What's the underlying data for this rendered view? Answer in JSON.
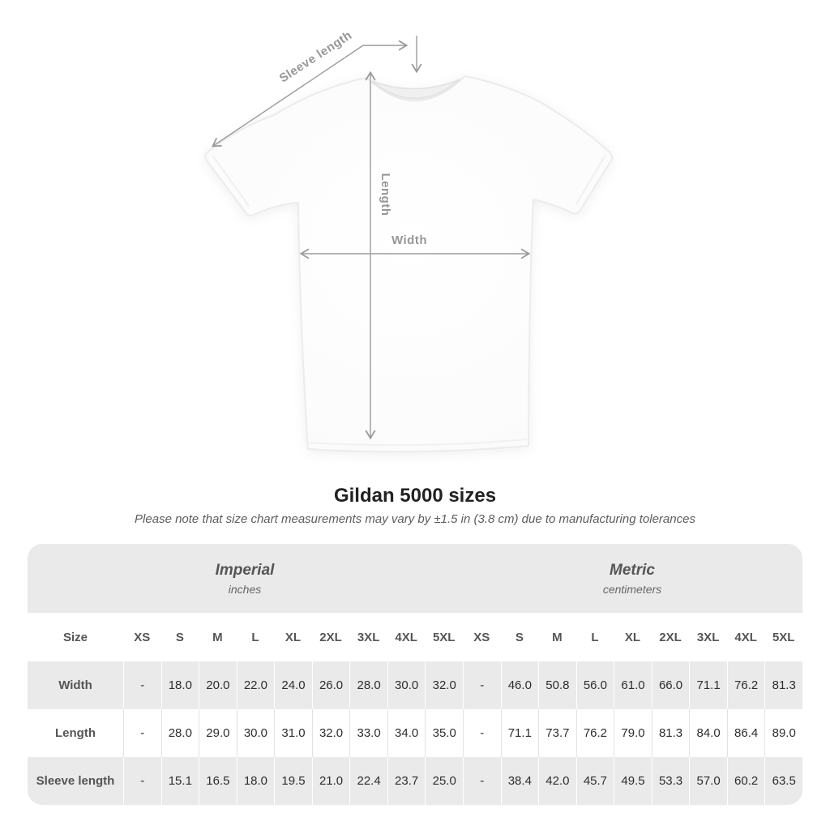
{
  "diagram": {
    "labels": {
      "sleeve": "Sleeve length",
      "length": "Length",
      "width": "Width"
    },
    "line_color": "#9b9b9b"
  },
  "chart_data": {
    "type": "table",
    "title": "Gildan 5000 sizes",
    "note": "Please note that size chart measurements may vary by ±1.5 in (3.8 cm) due to manufacturing tolerances",
    "corner_label": "Size",
    "unit_sections": [
      {
        "label": "Imperial",
        "sublabel": "inches"
      },
      {
        "label": "Metric",
        "sublabel": "centimeters"
      }
    ],
    "size_columns": [
      "XS",
      "S",
      "M",
      "L",
      "XL",
      "2XL",
      "3XL",
      "4XL",
      "5XL"
    ],
    "rows": [
      {
        "label": "Width",
        "imperial": [
          "-",
          "18.0",
          "20.0",
          "22.0",
          "24.0",
          "26.0",
          "28.0",
          "30.0",
          "32.0"
        ],
        "metric": [
          "-",
          "46.0",
          "50.8",
          "56.0",
          "61.0",
          "66.0",
          "71.1",
          "76.2",
          "81.3"
        ]
      },
      {
        "label": "Length",
        "imperial": [
          "-",
          "28.0",
          "29.0",
          "30.0",
          "31.0",
          "32.0",
          "33.0",
          "34.0",
          "35.0"
        ],
        "metric": [
          "-",
          "71.1",
          "73.7",
          "76.2",
          "79.0",
          "81.3",
          "84.0",
          "86.4",
          "89.0"
        ]
      },
      {
        "label": "Sleeve length",
        "imperial": [
          "-",
          "15.1",
          "16.5",
          "18.0",
          "19.5",
          "21.0",
          "22.4",
          "23.7",
          "25.0"
        ],
        "metric": [
          "-",
          "38.4",
          "42.0",
          "45.7",
          "49.5",
          "53.3",
          "57.0",
          "60.2",
          "63.5"
        ]
      }
    ]
  },
  "colors": {
    "annotation_gray": "#9b9b9b",
    "table_band": "#eaeaea",
    "title_text": "#222222"
  }
}
